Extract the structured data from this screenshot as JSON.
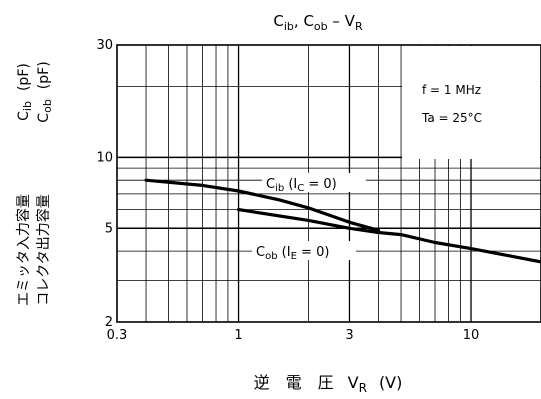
{
  "chart_data": {
    "type": "line",
    "title": {
      "main": "C",
      "ib": "ib",
      "comma": ", C",
      "ob": "ob",
      "sep": " – V",
      "r": "R"
    },
    "x_scale": "log",
    "y_scale": "log",
    "xlim": [
      0.3,
      20
    ],
    "ylim": [
      2,
      30
    ],
    "x_ticks": [
      {
        "value": 0.3,
        "label": "0.3"
      },
      {
        "value": 1,
        "label": "1"
      },
      {
        "value": 3,
        "label": "3"
      },
      {
        "value": 10,
        "label": "10"
      }
    ],
    "y_ticks": [
      {
        "value": 2,
        "label": "2"
      },
      {
        "value": 5,
        "label": "5"
      },
      {
        "value": 10,
        "label": "10"
      },
      {
        "value": 30,
        "label": "30"
      }
    ],
    "xlabel": {
      "jp": "逆　電　圧",
      "v": "V",
      "sub": "R",
      "unit": "(V)"
    },
    "ylabel": {
      "jp1": "エミッタ入力容量",
      "jp2": "コレクタ出力容量",
      "c1": "C",
      "c1sub": "ib",
      "u1": "(pF)",
      "c2": "C",
      "c2sub": "ob",
      "u2": "(pF)"
    },
    "conditions": [
      "f = 1 MHz",
      "Ta = 25°C"
    ],
    "series": [
      {
        "label": {
          "c": "C",
          "csub": "ib",
          "open": " (I",
          "isub": "C",
          "close": " = 0)"
        },
        "x": [
          0.4,
          0.7,
          1,
          1.5,
          2,
          3,
          4
        ],
        "y": [
          8.0,
          7.6,
          7.2,
          6.6,
          6.1,
          5.3,
          4.9
        ]
      },
      {
        "label": {
          "c": "C",
          "csub": "ob",
          "open": " (I",
          "isub": "E",
          "close": " = 0)"
        },
        "x": [
          1,
          2,
          3,
          4,
          5,
          7,
          10,
          15,
          20
        ],
        "y": [
          6.0,
          5.4,
          5.0,
          4.8,
          4.7,
          4.35,
          4.1,
          3.8,
          3.6
        ]
      }
    ],
    "grid": true,
    "colors": {
      "line": "#000000",
      "grid": "#000000",
      "background": "#ffffff"
    }
  }
}
